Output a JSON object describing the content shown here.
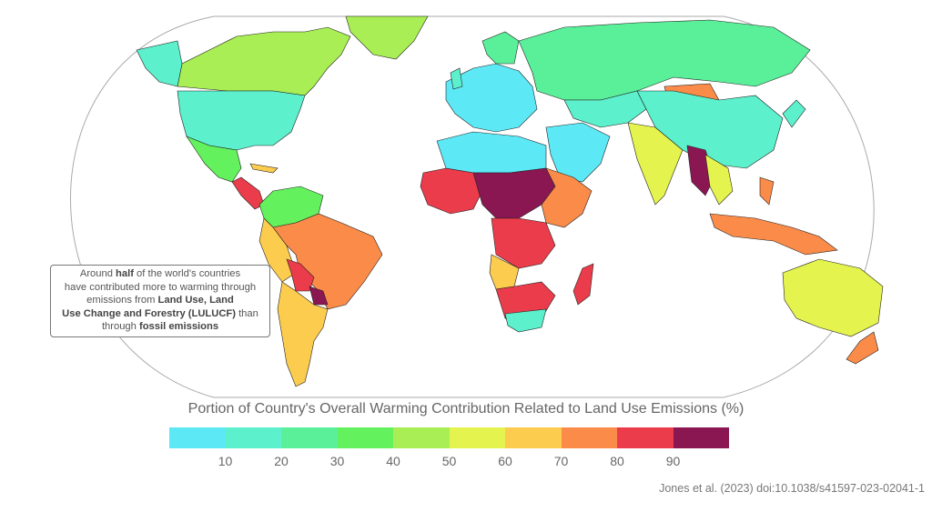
{
  "callout": {
    "l1_a": "Around ",
    "l1_b": "half",
    "l1_c": " of the world's countries",
    "l2": "have contributed more to warming through",
    "l3_a": "emissions from ",
    "l3_b": "Land Use, Land",
    "l4_b": "Use Change and Forestry (LULUCF)",
    "l4_c": " than",
    "l5_a": "through ",
    "l5_b": "fossil emissions"
  },
  "legend": {
    "title": "Portion of Country's Overall Warming Contribution Related to Land Use Emissions (%)",
    "colors": [
      "#5de8f6",
      "#5cf0cc",
      "#5af09a",
      "#63f25d",
      "#a8ee54",
      "#e5f34e",
      "#fccc4e",
      "#fb8b48",
      "#ea3c4a",
      "#8a1752"
    ],
    "ticks": [
      "10",
      "20",
      "30",
      "40",
      "50",
      "60",
      "70",
      "80",
      "90"
    ]
  },
  "citation": "Jones et al. (2023) doi:10.1038/s41597-023-02041-1"
}
